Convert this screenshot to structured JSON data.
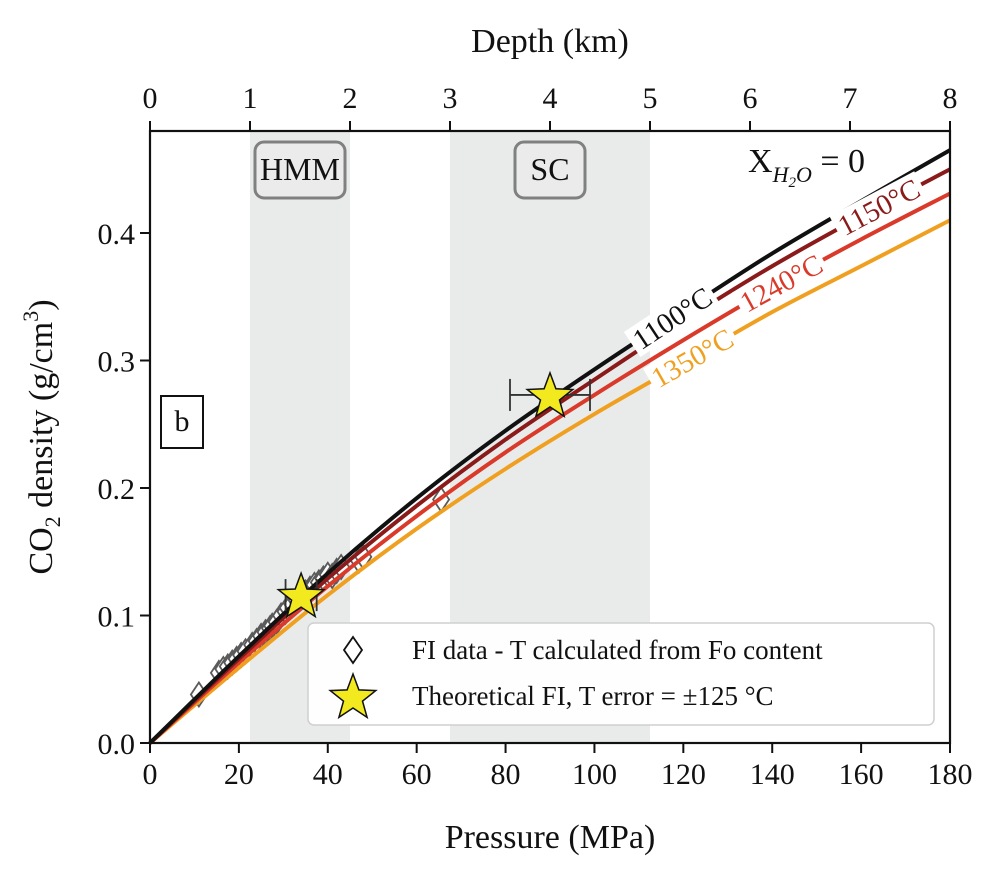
{
  "chart_data": {
    "type": "line",
    "panel_label": "b",
    "xlabel": "Pressure (MPa)",
    "ylabel": "CO",
    "ylabel_sub": "2",
    "ylabel_rest": " density (g/cm",
    "ylabel_sup": "3",
    "ylabel_end": ")",
    "top_xlabel": "Depth (km)",
    "xlim": [
      0,
      180
    ],
    "ylim": [
      0,
      0.48
    ],
    "top_xlim": [
      0,
      8
    ],
    "x_ticks": [
      0,
      20,
      40,
      60,
      80,
      100,
      120,
      140,
      160,
      180
    ],
    "x_tick_labels": [
      "0",
      "20",
      "40",
      "60",
      "80",
      "100",
      "120",
      "140",
      "160",
      "180"
    ],
    "y_ticks": [
      0,
      0.1,
      0.2,
      0.3,
      0.4
    ],
    "y_tick_labels": [
      "0.0",
      "0.1",
      "0.2",
      "0.3",
      "0.4"
    ],
    "top_ticks": [
      0,
      1,
      2,
      3,
      4,
      5,
      6,
      7,
      8
    ],
    "top_tick_labels": [
      "0",
      "1",
      "2",
      "3",
      "4",
      "5",
      "6",
      "7",
      "8"
    ],
    "grid": false,
    "annotation": {
      "prefix": "X",
      "sub": "H",
      "sub2": "2",
      "sub3": "O",
      "suffix": " = 0"
    },
    "shaded_regions": [
      {
        "label": "HMM",
        "x_start": 22.5,
        "x_end": 45
      },
      {
        "label": "SC",
        "x_start": 67.5,
        "x_end": 112.5
      }
    ],
    "series": [
      {
        "name": "1100°C",
        "color": "#111111",
        "x": [
          0,
          20,
          40,
          60,
          80,
          100,
          120,
          140,
          160,
          180
        ],
        "y": [
          0,
          0.068,
          0.133,
          0.192,
          0.245,
          0.293,
          0.339,
          0.384,
          0.425,
          0.465
        ]
      },
      {
        "name": "1150°C",
        "color": "#8b1a1a",
        "x": [
          0,
          20,
          40,
          60,
          80,
          100,
          120,
          140,
          160,
          180
        ],
        "y": [
          0,
          0.066,
          0.129,
          0.186,
          0.238,
          0.285,
          0.331,
          0.374,
          0.413,
          0.45
        ]
      },
      {
        "name": "1240°C",
        "color": "#d93a2a",
        "x": [
          0,
          20,
          40,
          60,
          80,
          100,
          120,
          140,
          160,
          180
        ],
        "y": [
          0,
          0.063,
          0.123,
          0.178,
          0.228,
          0.273,
          0.316,
          0.357,
          0.395,
          0.431
        ]
      },
      {
        "name": "1350°C",
        "color": "#f0a020",
        "x": [
          0,
          20,
          40,
          60,
          80,
          100,
          120,
          140,
          160,
          180
        ],
        "y": [
          0,
          0.059,
          0.116,
          0.168,
          0.215,
          0.258,
          0.298,
          0.338,
          0.374,
          0.41
        ]
      }
    ],
    "fi_data": {
      "name": "FI data - T calculated from Fo content",
      "points": [
        [
          11,
          0.038
        ],
        [
          15.5,
          0.055
        ],
        [
          16.5,
          0.058
        ],
        [
          17.5,
          0.06
        ],
        [
          18.5,
          0.063
        ],
        [
          19.5,
          0.066
        ],
        [
          20.5,
          0.069
        ],
        [
          21.5,
          0.072
        ],
        [
          23,
          0.077
        ],
        [
          24,
          0.08
        ],
        [
          25,
          0.084
        ],
        [
          26,
          0.087
        ],
        [
          27,
          0.09
        ],
        [
          27.5,
          0.092
        ],
        [
          28.5,
          0.095
        ],
        [
          29.5,
          0.1
        ],
        [
          30.5,
          0.103
        ],
        [
          31,
          0.106
        ],
        [
          32,
          0.109
        ],
        [
          33,
          0.112
        ],
        [
          34,
          0.115
        ],
        [
          35,
          0.118
        ],
        [
          36,
          0.121
        ],
        [
          37,
          0.124
        ],
        [
          38,
          0.126
        ],
        [
          39,
          0.129
        ],
        [
          40,
          0.132
        ],
        [
          41,
          0.131
        ],
        [
          42,
          0.135
        ],
        [
          43,
          0.138
        ],
        [
          47,
          0.143
        ],
        [
          48,
          0.146
        ],
        [
          65.5,
          0.191
        ]
      ]
    },
    "theoretical_fi": {
      "name": "Theoretical FI, T error = ±125 °C",
      "points": [
        {
          "x": 34,
          "y": 0.116,
          "x_err_low": 30.5,
          "x_err_high": 37.5
        },
        {
          "x": 90,
          "y": 0.273,
          "x_err_low": 81,
          "x_err_high": 99
        }
      ]
    },
    "legend_position": "lower right"
  },
  "colors": {
    "shade": "#e9ebeb",
    "box_border": "#808080",
    "star_fill": "#f2e91e"
  }
}
